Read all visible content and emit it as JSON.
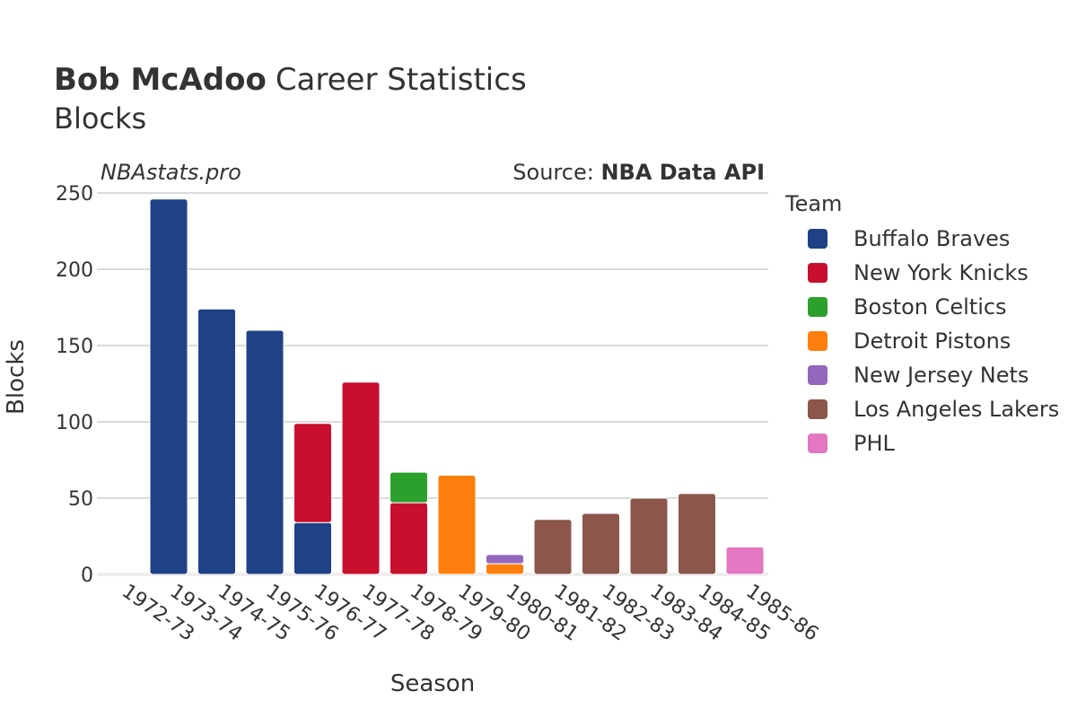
{
  "title": {
    "player": "Bob McAdoo",
    "rest": "Career Statistics",
    "subtitle": "Blocks"
  },
  "watermark": "NBAstats.pro",
  "source": {
    "prefix": "Source: ",
    "name": "NBA Data API"
  },
  "legend_title": "Team",
  "chart_data": {
    "type": "bar",
    "stacked": true,
    "categories": [
      "1972-73",
      "1973-74",
      "1974-75",
      "1975-76",
      "1976-77",
      "1977-78",
      "1978-79",
      "1979-80",
      "1980-81",
      "1981-82",
      "1982-83",
      "1983-84",
      "1984-85",
      "1985-86"
    ],
    "xlabel": "Season",
    "ylabel": "Blocks",
    "ylim": [
      0,
      250
    ],
    "yticks": [
      0,
      50,
      100,
      150,
      200,
      250
    ],
    "grid": true,
    "legend_position": "right",
    "series": [
      {
        "name": "Buffalo Braves",
        "color": "#1f4287",
        "values": [
          null,
          246,
          174,
          160,
          34,
          null,
          null,
          null,
          null,
          null,
          null,
          null,
          null,
          null
        ]
      },
      {
        "name": "New York Knicks",
        "color": "#c8102e",
        "values": [
          null,
          null,
          null,
          null,
          65,
          126,
          47,
          null,
          null,
          null,
          null,
          null,
          null,
          null
        ]
      },
      {
        "name": "Boston Celtics",
        "color": "#2ca02c",
        "values": [
          null,
          null,
          null,
          null,
          null,
          null,
          20,
          null,
          null,
          null,
          null,
          null,
          null,
          null
        ]
      },
      {
        "name": "Detroit Pistons",
        "color": "#ff7f0e",
        "values": [
          null,
          null,
          null,
          null,
          null,
          null,
          null,
          65,
          7,
          null,
          null,
          null,
          null,
          null
        ]
      },
      {
        "name": "New Jersey Nets",
        "color": "#9467bd",
        "values": [
          null,
          null,
          null,
          null,
          null,
          null,
          null,
          null,
          6,
          null,
          null,
          null,
          null,
          null
        ]
      },
      {
        "name": "Los Angeles Lakers",
        "color": "#8c564b",
        "values": [
          null,
          null,
          null,
          null,
          null,
          null,
          null,
          null,
          null,
          36,
          40,
          50,
          53,
          null
        ]
      },
      {
        "name": "PHL",
        "color": "#e377c2",
        "values": [
          null,
          null,
          null,
          null,
          null,
          null,
          null,
          null,
          null,
          null,
          null,
          null,
          null,
          18
        ]
      }
    ]
  }
}
